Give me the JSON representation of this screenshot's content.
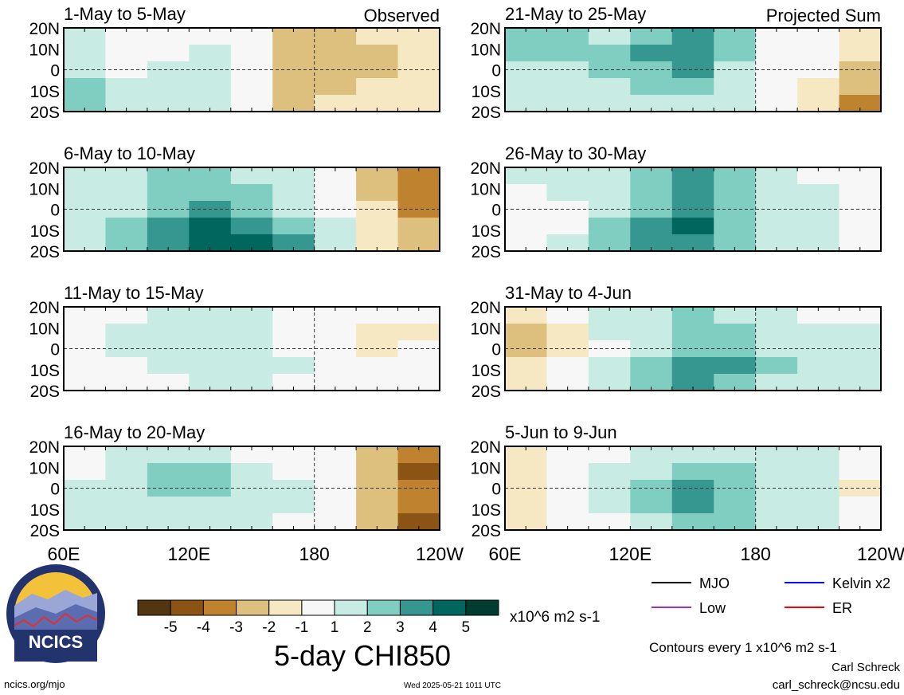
{
  "chart_data": {
    "type": "heatmap",
    "title": "5-day CHI850",
    "panels": [
      {
        "label": "1-May to 5-May",
        "tag": "Observed",
        "values": [
          [
            1,
            0,
            0,
            0,
            0,
            -2,
            -2,
            -1,
            -1
          ],
          [
            1,
            0,
            0,
            1,
            0,
            -2,
            -2,
            -2,
            -1
          ],
          [
            1,
            0,
            1,
            1,
            0,
            -2,
            -2,
            -2,
            -1
          ],
          [
            2,
            1,
            1,
            1,
            0,
            -2,
            -2,
            -1,
            -1
          ],
          [
            2,
            1,
            1,
            1,
            0,
            -2,
            -1,
            -1,
            -1
          ]
        ]
      },
      {
        "label": "21-May to 25-May",
        "tag": "Projected Sum",
        "values": [
          [
            2,
            2,
            1,
            2,
            3,
            2,
            0,
            0,
            -1
          ],
          [
            2,
            2,
            2,
            3,
            3,
            2,
            0,
            0,
            -1
          ],
          [
            1,
            1,
            2,
            2,
            3,
            1,
            0,
            0,
            -2
          ],
          [
            1,
            1,
            1,
            2,
            2,
            1,
            0,
            -1,
            -2
          ],
          [
            1,
            1,
            1,
            1,
            1,
            1,
            0,
            -1,
            -3
          ]
        ]
      },
      {
        "label": "6-May to 10-May",
        "tag": "",
        "values": [
          [
            1,
            1,
            2,
            2,
            1,
            1,
            0,
            -2,
            -3
          ],
          [
            1,
            1,
            2,
            2,
            2,
            1,
            0,
            -2,
            -3
          ],
          [
            1,
            1,
            2,
            3,
            2,
            1,
            0,
            -1,
            -3
          ],
          [
            1,
            2,
            3,
            4,
            3,
            2,
            1,
            -1,
            -2
          ],
          [
            1,
            2,
            3,
            4,
            4,
            3,
            1,
            -1,
            -2
          ]
        ]
      },
      {
        "label": "26-May to 30-May",
        "tag": "",
        "values": [
          [
            1,
            1,
            1,
            2,
            3,
            2,
            1,
            0,
            0
          ],
          [
            0,
            1,
            1,
            2,
            3,
            2,
            1,
            1,
            0
          ],
          [
            0,
            0,
            1,
            2,
            3,
            2,
            1,
            1,
            0
          ],
          [
            0,
            0,
            2,
            3,
            4,
            2,
            1,
            1,
            0
          ],
          [
            0,
            1,
            2,
            3,
            3,
            2,
            1,
            1,
            0
          ]
        ]
      },
      {
        "label": "11-May to 15-May",
        "tag": "",
        "values": [
          [
            0,
            0,
            1,
            1,
            1,
            0,
            0,
            0,
            0
          ],
          [
            0,
            1,
            1,
            1,
            1,
            0,
            0,
            -1,
            -1
          ],
          [
            0,
            1,
            1,
            1,
            1,
            0,
            0,
            -1,
            0
          ],
          [
            0,
            0,
            1,
            1,
            1,
            1,
            0,
            0,
            0
          ],
          [
            0,
            0,
            0,
            1,
            1,
            0,
            0,
            0,
            0
          ]
        ]
      },
      {
        "label": "31-May to 4-Jun",
        "tag": "",
        "values": [
          [
            -1,
            0,
            1,
            1,
            2,
            1,
            1,
            0,
            0
          ],
          [
            -2,
            -1,
            1,
            1,
            2,
            2,
            1,
            1,
            1
          ],
          [
            -2,
            -1,
            0,
            1,
            2,
            2,
            1,
            1,
            1
          ],
          [
            -1,
            0,
            1,
            2,
            3,
            3,
            2,
            1,
            1
          ],
          [
            -1,
            0,
            1,
            2,
            3,
            2,
            1,
            1,
            1
          ]
        ]
      },
      {
        "label": "16-May to 20-May",
        "tag": "",
        "values": [
          [
            0,
            1,
            1,
            1,
            0,
            0,
            0,
            -2,
            -3
          ],
          [
            0,
            1,
            2,
            2,
            1,
            0,
            0,
            -2,
            -4
          ],
          [
            1,
            1,
            2,
            2,
            1,
            1,
            0,
            -2,
            -3
          ],
          [
            1,
            1,
            1,
            1,
            1,
            1,
            0,
            -2,
            -3
          ],
          [
            1,
            1,
            1,
            1,
            1,
            0,
            0,
            -2,
            -4
          ]
        ]
      },
      {
        "label": "5-Jun to 9-Jun",
        "tag": "",
        "values": [
          [
            -1,
            0,
            0,
            1,
            1,
            1,
            1,
            1,
            0
          ],
          [
            -1,
            0,
            1,
            1,
            2,
            2,
            1,
            1,
            0
          ],
          [
            -1,
            0,
            1,
            2,
            3,
            2,
            1,
            1,
            -1
          ],
          [
            -1,
            0,
            1,
            2,
            3,
            2,
            1,
            1,
            0
          ],
          [
            -1,
            0,
            0,
            1,
            2,
            2,
            1,
            1,
            0
          ]
        ]
      }
    ],
    "y_ticks": [
      "20N",
      "10N",
      "0",
      "10S",
      "20S"
    ],
    "x_ticks": [
      "60E",
      "120E",
      "180",
      "120W"
    ],
    "colorbar": {
      "ticks": [
        "-5",
        "-4",
        "-3",
        "-2",
        "-1",
        "1",
        "2",
        "3",
        "4",
        "5"
      ],
      "colors": [
        "#523611",
        "#8c5414",
        "#bf8330",
        "#dec07e",
        "#f5e8c2",
        "#f7f7f7",
        "#c8ebe4",
        "#80cdc1",
        "#35978f",
        "#01665e",
        "#003c30"
      ],
      "units": "x10^6 m2 s-1"
    },
    "legend": [
      {
        "label": "MJO",
        "color": "#000000"
      },
      {
        "label": "Kelvin x2",
        "color": "#0000ff"
      },
      {
        "label": "Low",
        "color": "#9932cc"
      },
      {
        "label": "ER",
        "color": "#ff0000"
      }
    ]
  },
  "footer": {
    "logo_text": "NCICS",
    "contours_note": "Contours every 1 x10^6 m2 s-1",
    "author": "Carl Schreck",
    "email": "carl_schreck@ncsu.edu",
    "url": "ncics.org/mjo",
    "timestamp": "Wed 2025-05-21 1011 UTC"
  }
}
